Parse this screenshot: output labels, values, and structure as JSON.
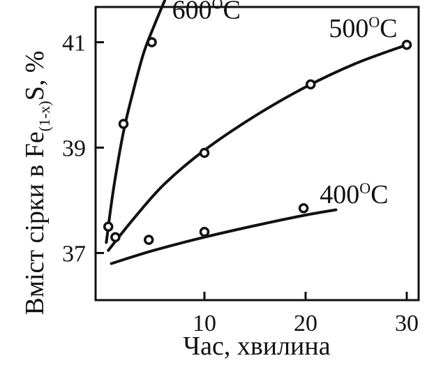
{
  "chart_data": {
    "type": "scatter",
    "xlabel": "Час, хвилина",
    "ylabel": {
      "prefix": "Вміст сірки в Fe",
      "subscript": "(1-x)",
      "suffix": "S, %"
    },
    "xlim": [
      0,
      31
    ],
    "ylim": [
      36.0,
      42.0
    ],
    "xticks": [
      10,
      20,
      30
    ],
    "yticks": [
      37,
      39,
      41
    ],
    "grid": false,
    "legend": "none",
    "series": [
      {
        "name": "600°C",
        "label_base": "600",
        "label_sup": "O",
        "label_tail": "C",
        "label_anchor": [
          6.8,
          41.45
        ],
        "points": [
          [
            0.5,
            37.5
          ],
          [
            2.0,
            39.45
          ],
          [
            4.8,
            41.0
          ]
        ],
        "curve": [
          [
            0.3,
            37.2
          ],
          [
            1.0,
            38.2
          ],
          [
            2.0,
            39.3
          ],
          [
            3.0,
            40.1
          ],
          [
            4.0,
            40.8
          ],
          [
            5.0,
            41.3
          ],
          [
            6.2,
            41.85
          ]
        ]
      },
      {
        "name": "500°C",
        "label_base": "500",
        "label_sup": "O",
        "label_tail": "C",
        "label_anchor": [
          22.3,
          41.1
        ],
        "points": [
          [
            1.2,
            37.3
          ],
          [
            10.0,
            38.9
          ],
          [
            20.5,
            40.2
          ],
          [
            30.0,
            40.95
          ]
        ],
        "curve": [
          [
            0.5,
            37.05
          ],
          [
            3.0,
            37.65
          ],
          [
            6.0,
            38.3
          ],
          [
            10.0,
            38.95
          ],
          [
            15.0,
            39.6
          ],
          [
            20.0,
            40.15
          ],
          [
            25.0,
            40.6
          ],
          [
            30.0,
            40.95
          ]
        ]
      },
      {
        "name": "400°C",
        "label_base": "400",
        "label_sup": "O",
        "label_tail": "C",
        "label_anchor": [
          21.4,
          37.95
        ],
        "points": [
          [
            4.5,
            37.25
          ],
          [
            10.0,
            37.4
          ],
          [
            19.8,
            37.85
          ]
        ],
        "curve": [
          [
            0.8,
            36.8
          ],
          [
            5.0,
            37.05
          ],
          [
            10.0,
            37.3
          ],
          [
            15.0,
            37.52
          ],
          [
            20.0,
            37.72
          ],
          [
            23.0,
            37.82
          ]
        ]
      }
    ]
  }
}
